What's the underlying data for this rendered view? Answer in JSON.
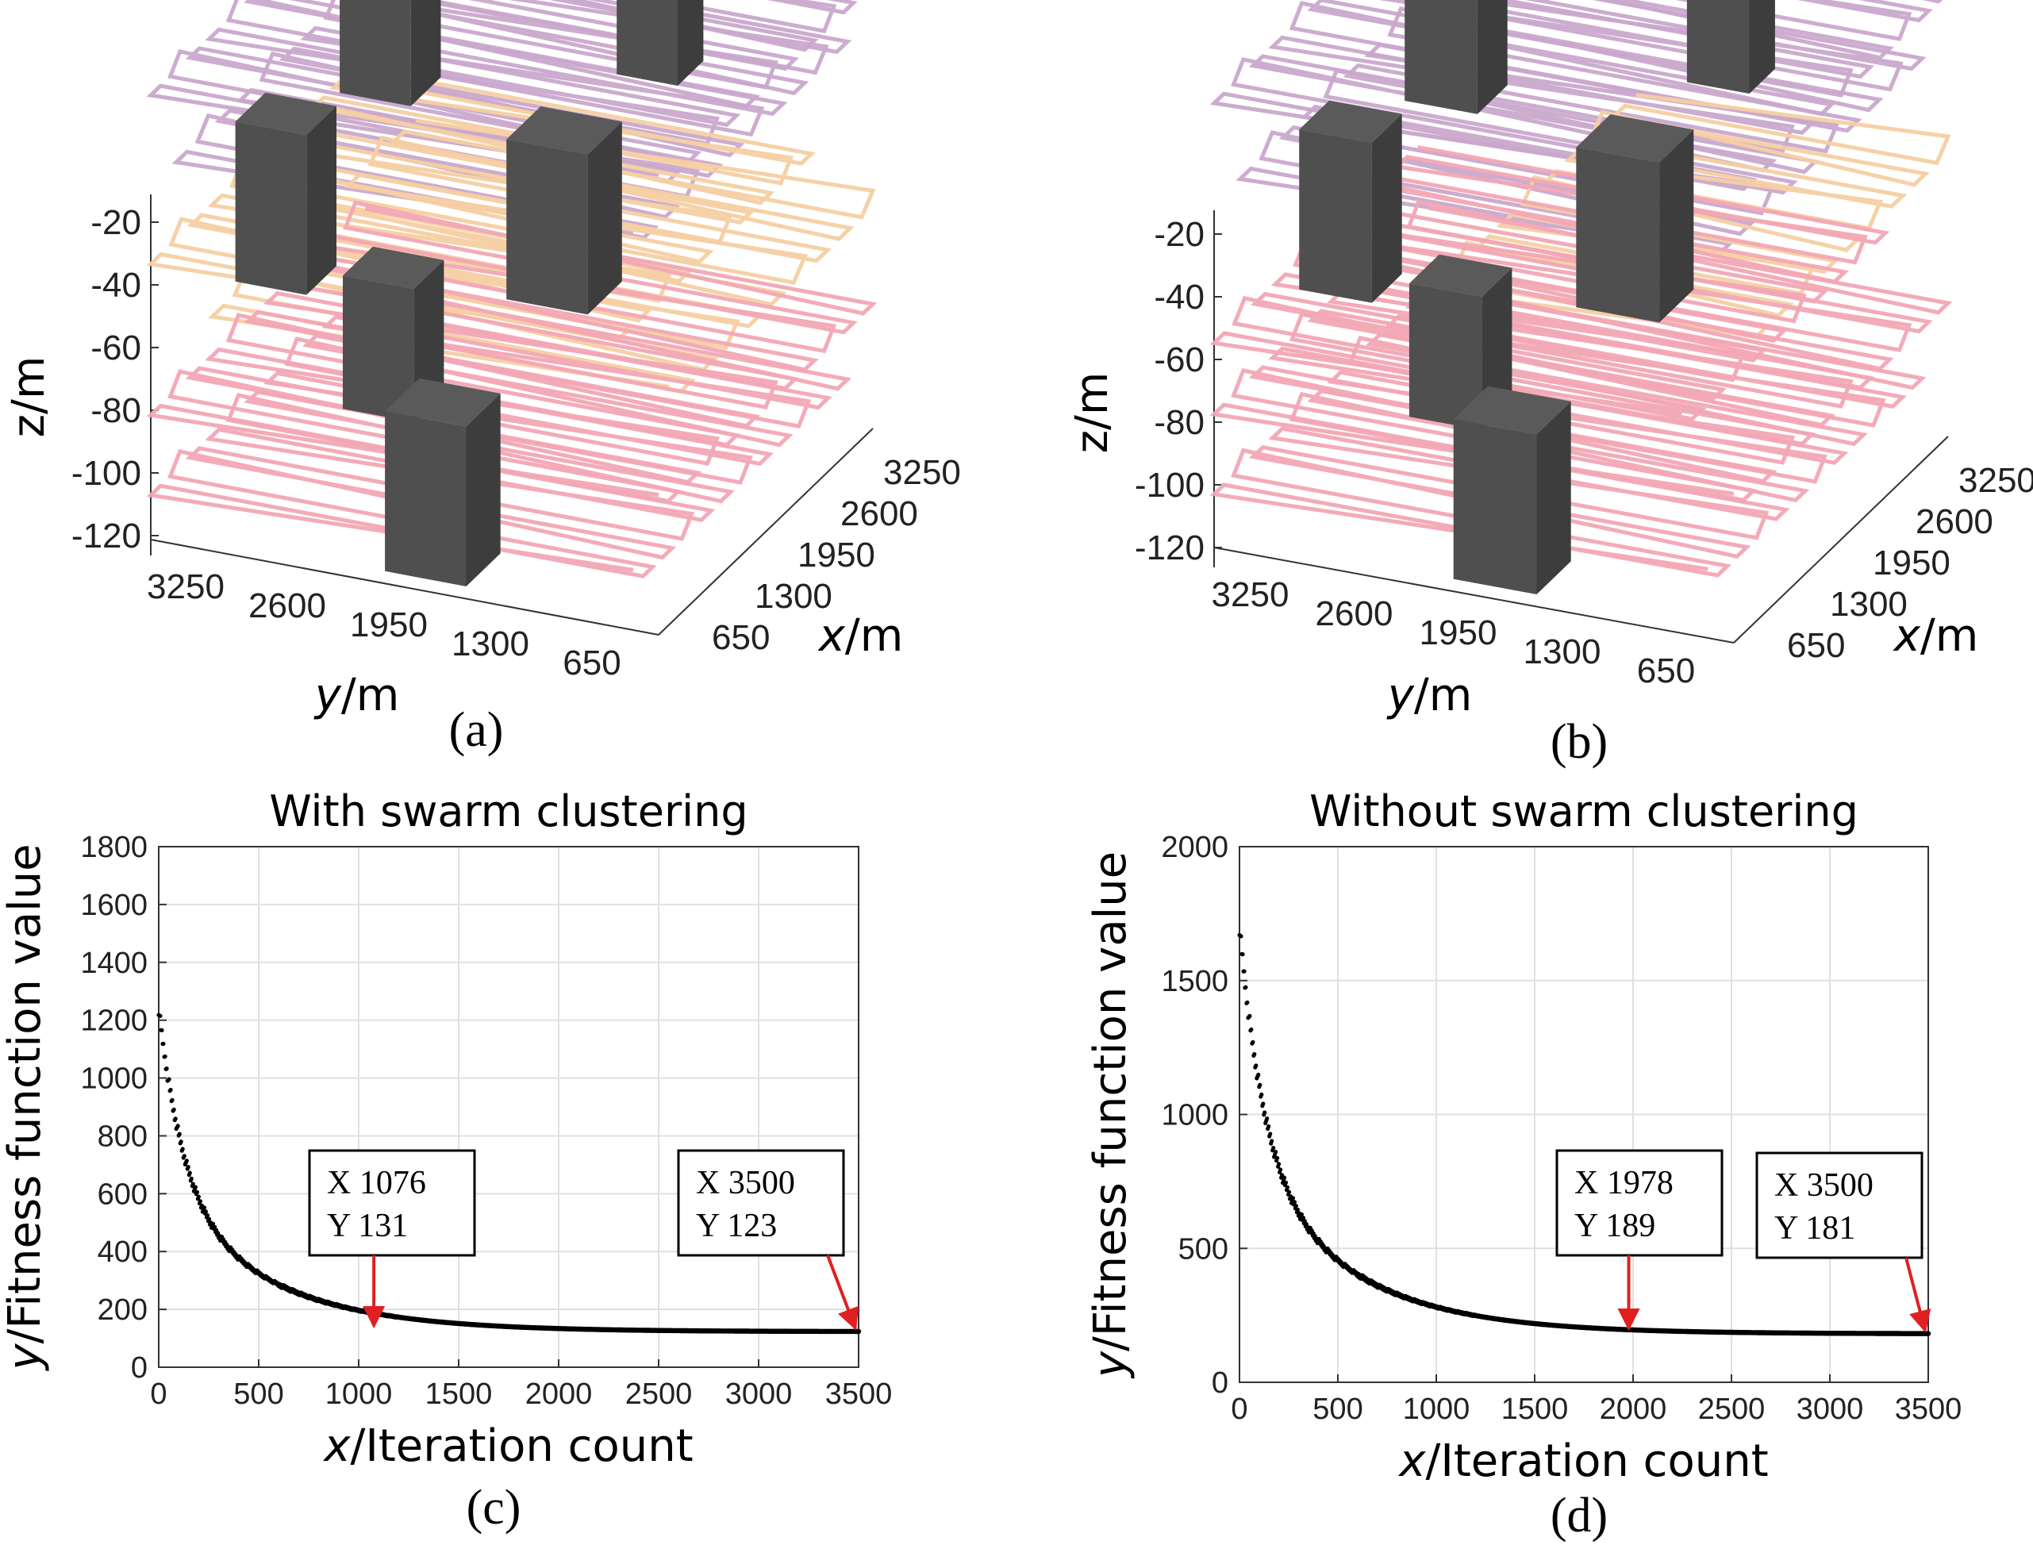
{
  "figure": {
    "captions": [
      "(a)",
      "(b)",
      "(c)",
      "(d)"
    ]
  },
  "colors": {
    "layer_top": "#c9a8cc",
    "layer_mid": "#f6cfa2",
    "layer_bottom": "#f2a7b4",
    "obstacle": "#4a4a4a",
    "curve": "#000000",
    "arrow": "#e02020",
    "grid": "#e0e0e0"
  },
  "chart_data": [
    {
      "type": "3d-path",
      "panel": "(a)",
      "zlabel": "z/m",
      "ylabel_italic": "y",
      "ylabel_unit": "/m",
      "xlabel_italic": "x",
      "xlabel_unit": "/m",
      "zticks": [
        "-20",
        "-40",
        "-60",
        "-80",
        "-100",
        "-120"
      ],
      "yticks": [
        "3250",
        "2600",
        "1950",
        "1300",
        "650"
      ],
      "xticks": [
        "3250",
        "2600",
        "1950",
        "1300",
        "650"
      ],
      "layers": [
        "top",
        "mid",
        "bottom"
      ]
    },
    {
      "type": "3d-path",
      "panel": "(b)",
      "zlabel": "z/m",
      "ylabel_italic": "y",
      "ylabel_unit": "/m",
      "xlabel_italic": "x",
      "xlabel_unit": "/m",
      "zticks": [
        "-20",
        "-40",
        "-60",
        "-80",
        "-100",
        "-120"
      ],
      "yticks": [
        "3250",
        "2600",
        "1950",
        "1300",
        "650"
      ],
      "xticks": [
        "3250",
        "2600",
        "1950",
        "1300",
        "650"
      ],
      "layers": [
        "top",
        "mid",
        "bottom"
      ]
    },
    {
      "type": "scatter",
      "panel": "(c)",
      "title": "With swarm clustering",
      "xlabel_italic": "x",
      "xlabel_rest": "/Iteration count",
      "ylabel_italic": "y",
      "ylabel_rest": "/Fitness function value",
      "xlim": [
        0,
        3500
      ],
      "ylim": [
        0,
        1800
      ],
      "xticks": [
        0,
        500,
        1000,
        1500,
        2000,
        2500,
        3000,
        3500
      ],
      "yticks": [
        0,
        200,
        400,
        600,
        800,
        1000,
        1200,
        1400,
        1600,
        1800
      ],
      "curve": {
        "start": 1240,
        "plateau": 123,
        "iterations": 3500
      },
      "annotations": [
        {
          "x": 1076,
          "y": 131,
          "line1": "X  1076",
          "line2": "Y  131"
        },
        {
          "x": 3500,
          "y": 123,
          "line1": "X  3500",
          "line2": "Y  123"
        }
      ]
    },
    {
      "type": "scatter",
      "panel": "(d)",
      "title": "Without swarm clustering",
      "xlabel_italic": "x",
      "xlabel_rest": "/Iteration count",
      "ylabel_italic": "y",
      "ylabel_rest": "/Fitness function value",
      "xlim": [
        0,
        3500
      ],
      "ylim": [
        0,
        2000
      ],
      "xticks": [
        0,
        500,
        1000,
        1500,
        2000,
        2500,
        3000,
        3500
      ],
      "yticks": [
        0,
        500,
        1000,
        1500,
        2000
      ],
      "curve": {
        "start": 1700,
        "plateau": 181,
        "iterations": 3500
      },
      "annotations": [
        {
          "x": 1978,
          "y": 189,
          "line1": "X  1978",
          "line2": "Y  189"
        },
        {
          "x": 3500,
          "y": 181,
          "line1": "X  3500",
          "line2": "Y  181"
        }
      ]
    }
  ]
}
